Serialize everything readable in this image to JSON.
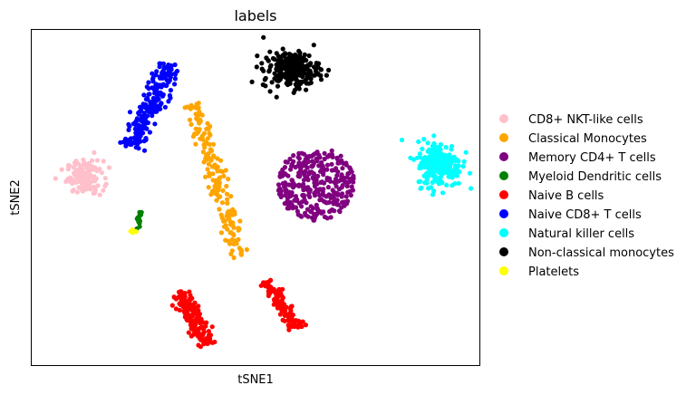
{
  "chart_data": {
    "type": "scatter",
    "title": "labels",
    "xlabel": "tSNE1",
    "ylabel": "tSNE2",
    "grid": false,
    "axis_ticks": false,
    "legend_position": "right",
    "series": [
      {
        "name": "CD8+ NKT-like cells",
        "color": "#ffc0cb",
        "cluster": {
          "cx": 0.12,
          "cy": 0.56,
          "rx": 0.045,
          "ry": 0.055,
          "shape": "blob",
          "n": 140
        }
      },
      {
        "name": "Classical Monocytes",
        "color": "#ffa500",
        "cluster": {
          "x1": 0.465,
          "y1": 0.32,
          "x2": 0.365,
          "y2": 0.78,
          "w": 0.02,
          "shape": "band",
          "n": 170
        }
      },
      {
        "name": "Memory CD4+ T cells",
        "color": "#800080",
        "cluster": {
          "cx": 0.635,
          "cy": 0.54,
          "rx": 0.085,
          "ry": 0.11,
          "shape": "disc",
          "n": 320
        }
      },
      {
        "name": "Myeloid Dendritic cells",
        "color": "#008000",
        "cluster": {
          "x1": 0.235,
          "y1": 0.4,
          "x2": 0.245,
          "y2": 0.46,
          "w": 0.005,
          "shape": "band",
          "n": 14
        }
      },
      {
        "name": "Naive B cells",
        "color": "#ff0000",
        "cluster": {
          "x1": 0.33,
          "y1": 0.22,
          "x2": 0.39,
          "y2": 0.06,
          "w": 0.018,
          "shape": "band",
          "n": 160
        }
      },
      {
        "name": "Naive B cells",
        "color": "#ff0000",
        "cluster": {
          "x1": 0.52,
          "y1": 0.25,
          "x2": 0.595,
          "y2": 0.11,
          "w": 0.015,
          "shape": "band",
          "n": 110
        }
      },
      {
        "name": "Naive CD8+ T cells",
        "color": "#0000ff",
        "cluster": {
          "x1": 0.22,
          "y1": 0.65,
          "x2": 0.315,
          "y2": 0.9,
          "w": 0.022,
          "shape": "band",
          "n": 220
        }
      },
      {
        "name": "Natural killer cells",
        "color": "#00ffff",
        "cluster": {
          "cx": 0.91,
          "cy": 0.6,
          "rx": 0.055,
          "ry": 0.075,
          "shape": "blob",
          "n": 230
        }
      },
      {
        "name": "Non-classical monocytes",
        "color": "#000000",
        "cluster": {
          "cx": 0.58,
          "cy": 0.88,
          "rx": 0.07,
          "ry": 0.06,
          "shape": "blob",
          "n": 230
        }
      },
      {
        "name": "Platelets",
        "color": "#ffff00",
        "cluster": {
          "cx": 0.225,
          "cy": 0.4,
          "rx": 0.007,
          "ry": 0.007,
          "shape": "blob",
          "n": 8
        }
      }
    ],
    "legend": [
      {
        "label": "CD8+ NKT-like cells",
        "color": "#ffc0cb"
      },
      {
        "label": "Classical Monocytes",
        "color": "#ffa500"
      },
      {
        "label": "Memory CD4+ T cells",
        "color": "#800080"
      },
      {
        "label": "Myeloid Dendritic cells",
        "color": "#008000"
      },
      {
        "label": "Naive B cells",
        "color": "#ff0000"
      },
      {
        "label": "Naive CD8+ T cells",
        "color": "#0000ff"
      },
      {
        "label": "Natural killer cells",
        "color": "#00ffff"
      },
      {
        "label": "Non-classical monocytes",
        "color": "#000000"
      },
      {
        "label": "Platelets",
        "color": "#ffff00"
      }
    ]
  }
}
